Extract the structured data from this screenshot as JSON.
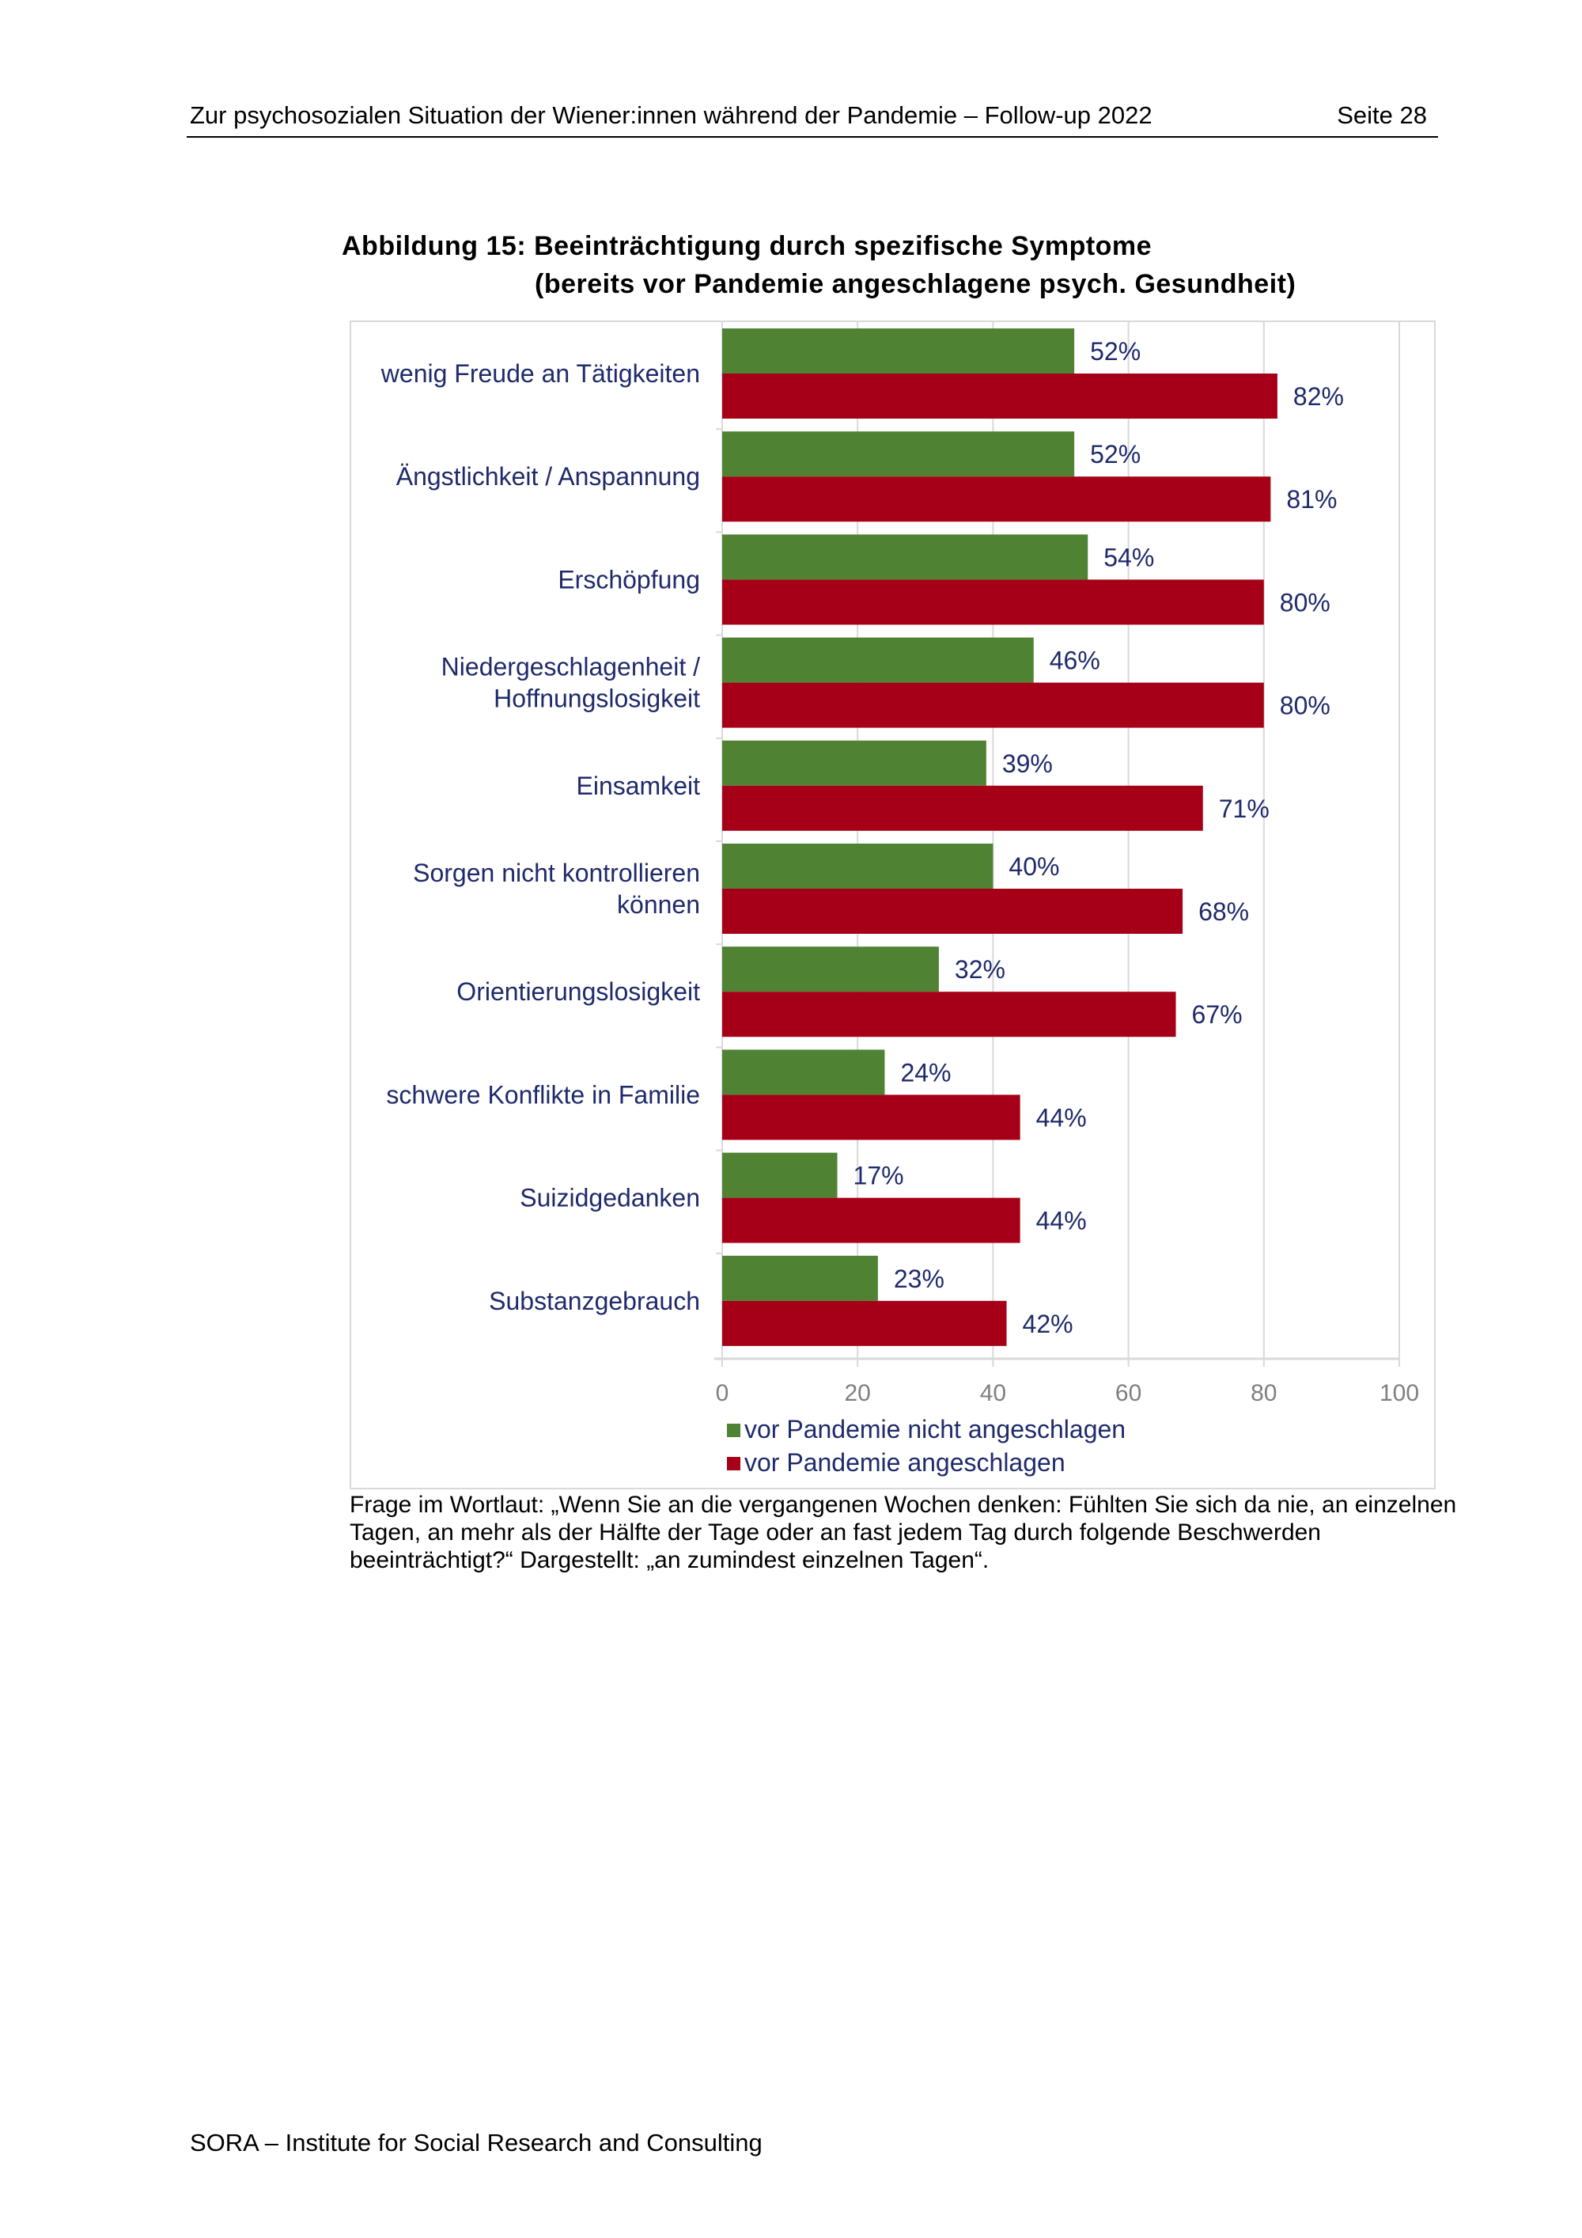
{
  "header": {
    "title": "Zur psychosozialen Situation der Wiener:innen während der Pandemie – Follow-up 2022",
    "page": "Seite 28"
  },
  "figure": {
    "title_line1": "Abbildung 15: Beeinträchtigung durch spezifische Symptome",
    "title_line2": "(bereits vor Pandemie angeschlagene psych. Gesundheit)"
  },
  "chart_data": {
    "type": "bar",
    "orientation": "horizontal",
    "categories": [
      [
        "wenig Freude an Tätigkeiten"
      ],
      [
        "Ängstlichkeit / Anspannung"
      ],
      [
        "Erschöpfung"
      ],
      [
        "Niedergeschlagenheit /",
        "Hoffnungslosigkeit"
      ],
      [
        "Einsamkeit"
      ],
      [
        "Sorgen nicht kontrollieren",
        "können"
      ],
      [
        "Orientierungslosigkeit"
      ],
      [
        "schwere Konflikte in Familie"
      ],
      [
        "Suizidgedanken"
      ],
      [
        "Substanzgebrauch"
      ]
    ],
    "series": [
      {
        "name": "vor Pandemie nicht angeschlagen",
        "color": "#4f8233",
        "values": [
          52,
          52,
          54,
          46,
          39,
          40,
          32,
          24,
          17,
          23
        ]
      },
      {
        "name": "vor Pandemie angeschlagen",
        "color": "#a50018",
        "values": [
          82,
          81,
          80,
          80,
          71,
          68,
          67,
          44,
          44,
          42
        ]
      }
    ],
    "value_suffix": "%",
    "xlim": [
      0,
      100
    ],
    "xticks": [
      "0",
      "20",
      "40",
      "60",
      "80",
      "100"
    ],
    "grid": true,
    "legend": "bottom",
    "label_color": "#1f2a6b",
    "tick_color": "#7f7f7f"
  },
  "caption": "Frage im Wortlaut: „Wenn Sie an die vergangenen Wochen denken: Fühlten Sie sich da nie, an einzelnen Tagen, an mehr als der Hälfte der Tage oder an fast jedem Tag durch folgende Beschwerden beeinträchtigt?“ Dargestellt: „an zumindest einzelnen Tagen“.",
  "footer": "SORA – Institute for Social Research and Consulting"
}
